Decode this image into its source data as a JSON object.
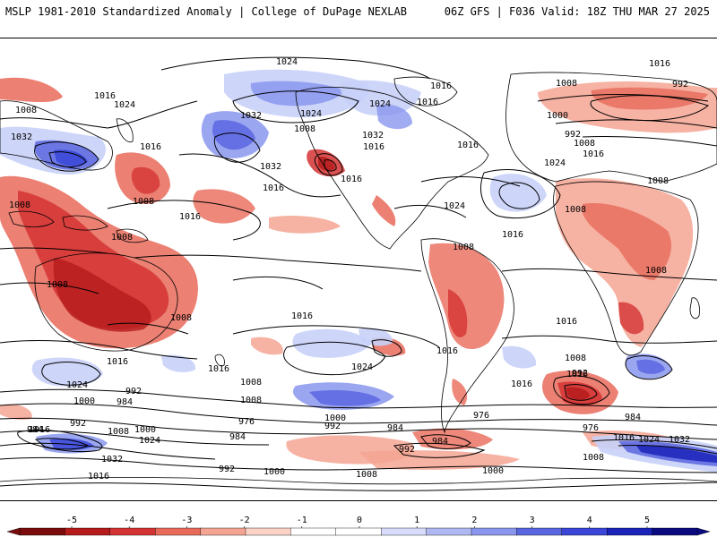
{
  "header": {
    "title_left": "MSLP 1981-2010 Standardized Anomaly | College of DuPage NEXLAB",
    "title_right": "06Z GFS | F036 Valid: 18Z THU MAR 27 2025"
  },
  "map": {
    "projection": "equirectangular-global",
    "colors": {
      "neg_strong": "#c81e1e",
      "neg_mid": "#e44a44",
      "neg_light": "#f4a493",
      "pos_light": "#c8d0f8",
      "pos_mid": "#8a96ee",
      "pos_strong": "#3a46d8",
      "contour": "#000000",
      "coast": "#000000"
    },
    "isobar_labels": [
      "1024",
      "1016",
      "992",
      "1008",
      "1016",
      "1024",
      "1016",
      "1008",
      "1016",
      "1000",
      "1032",
      "1032",
      "1024",
      "1032",
      "1008",
      "1016",
      "1024",
      "1032",
      "1016",
      "1016",
      "1016",
      "1008",
      "992",
      "1016",
      "1024",
      "1016",
      "1016",
      "1008",
      "1024",
      "1008",
      "1008",
      "1016",
      "1008",
      "1008",
      "1008",
      "1008",
      "1016",
      "1008",
      "1008",
      "1016",
      "1016",
      "1024",
      "1016",
      "1008",
      "1016",
      "1024",
      "1016",
      "1000",
      "1008",
      "992",
      "984",
      "1016",
      "992",
      "1000",
      "984",
      "1008",
      "1000",
      "1024",
      "992",
      "976",
      "984",
      "976",
      "984",
      "992",
      "1032",
      "992",
      "1000",
      "1008",
      "1000",
      "1016",
      "1024",
      "1032",
      "1016",
      "976",
      "984",
      "1008",
      "1016",
      "984",
      "992",
      "1008"
    ]
  },
  "colorbar": {
    "ticks": [
      "-5",
      "-4",
      "-3",
      "-2",
      "-1",
      "0",
      "1",
      "2",
      "3",
      "4",
      "5"
    ],
    "colors": [
      "#7a0c0c",
      "#b61b1b",
      "#d43333",
      "#e86a5a",
      "#f4a493",
      "#fbd2c6",
      "#ffffff",
      "#ffffff",
      "#d8dcfa",
      "#b0b8f2",
      "#8a96ee",
      "#5a66e0",
      "#3a46d8",
      "#1a22b8",
      "#0a0a80"
    ]
  }
}
